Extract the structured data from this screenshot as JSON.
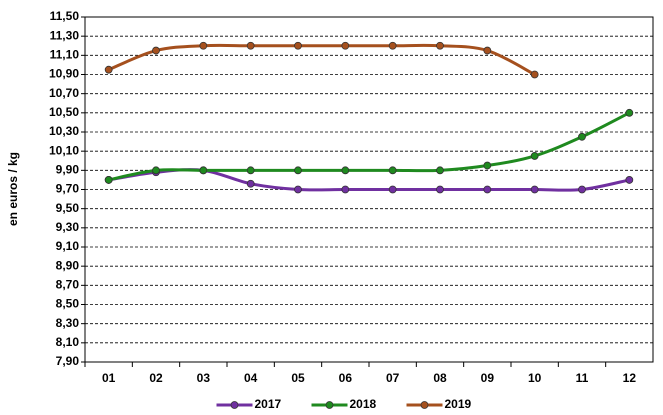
{
  "chart_data": {
    "type": "line",
    "y_label": "en euros / kg",
    "categories": [
      "01",
      "02",
      "03",
      "04",
      "05",
      "06",
      "07",
      "08",
      "09",
      "10",
      "11",
      "12"
    ],
    "series": [
      {
        "name": "2017",
        "color": "#7030a0",
        "values": [
          9.8,
          9.88,
          9.9,
          9.76,
          9.7,
          9.7,
          9.7,
          9.7,
          9.7,
          9.7,
          9.7,
          9.8
        ]
      },
      {
        "name": "2018",
        "color": "#1f8a1f",
        "values": [
          9.8,
          9.9,
          9.9,
          9.9,
          9.9,
          9.9,
          9.9,
          9.9,
          9.95,
          10.05,
          10.25,
          10.5
        ]
      },
      {
        "name": "2019",
        "color": "#a5501e",
        "values": [
          10.95,
          11.15,
          11.2,
          11.2,
          11.2,
          11.2,
          11.2,
          11.2,
          11.15,
          10.9,
          null,
          null
        ]
      }
    ],
    "ylim": [
      7.9,
      11.5
    ],
    "yticks": [
      {
        "value": 7.9,
        "label": "7,90"
      },
      {
        "value": 8.1,
        "label": "8,10"
      },
      {
        "value": 8.3,
        "label": "8,30"
      },
      {
        "value": 8.5,
        "label": "8,50"
      },
      {
        "value": 8.7,
        "label": "8,70"
      },
      {
        "value": 8.9,
        "label": "8,90"
      },
      {
        "value": 9.1,
        "label": "9,10"
      },
      {
        "value": 9.3,
        "label": "9,30"
      },
      {
        "value": 9.5,
        "label": "9,50"
      },
      {
        "value": 9.7,
        "label": "9,70"
      },
      {
        "value": 9.9,
        "label": "9,90"
      },
      {
        "value": 10.1,
        "label": "10,10"
      },
      {
        "value": 10.3,
        "label": "10,30"
      },
      {
        "value": 10.5,
        "label": "10,50"
      },
      {
        "value": 10.7,
        "label": "10,70"
      },
      {
        "value": 10.9,
        "label": "10,90"
      },
      {
        "value": 11.1,
        "label": "11,10"
      },
      {
        "value": 11.3,
        "label": "11,30"
      },
      {
        "value": 11.5,
        "label": "11,50"
      }
    ],
    "grid": true,
    "legend": "bottom"
  }
}
